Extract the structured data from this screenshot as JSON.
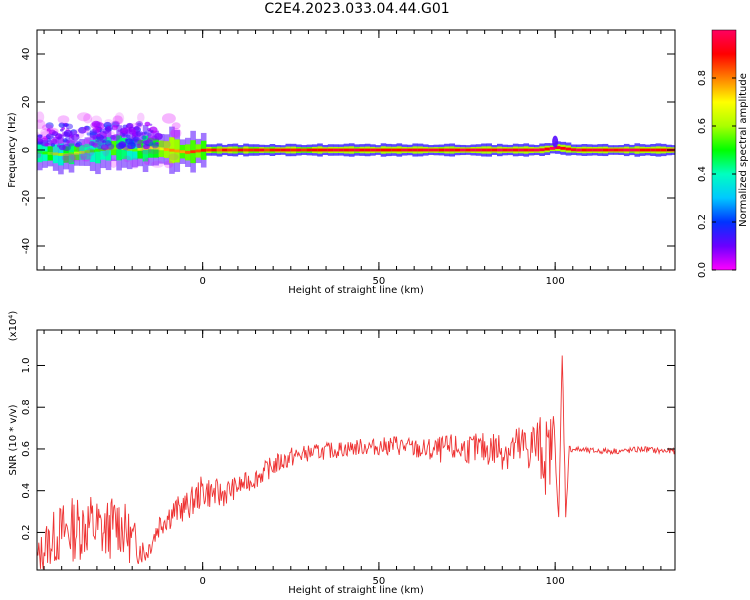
{
  "figure": {
    "title": "C2E4.2023.033.04.44.G01"
  },
  "colorbar": {
    "label": "Normalized spectral amplitude",
    "ticks": [
      "0.0",
      "0.2",
      "0.4",
      "0.6",
      "0.8"
    ],
    "tick_values": [
      0.0,
      0.2,
      0.4,
      0.6,
      0.8
    ],
    "range": [
      0,
      1
    ],
    "colors": [
      "#ff00ff",
      "#6a00ff",
      "#0033ff",
      "#00c8ff",
      "#00ffc0",
      "#00ff00",
      "#aaff00",
      "#ffff00",
      "#ff8000",
      "#ff0000",
      "#ff0060"
    ]
  },
  "chart_data": [
    {
      "type": "heatmap",
      "title": "",
      "xlabel": "Height of straight line (km)",
      "ylabel": "Frequency (Hz)",
      "xlim": [
        -47,
        134
      ],
      "ylim": [
        -50,
        50
      ],
      "xticks": [
        "0",
        "50",
        "100"
      ],
      "xtick_values": [
        0,
        50,
        100
      ],
      "yticks": [
        "-40",
        "-20",
        "0",
        "20",
        "40"
      ],
      "ytick_values": [
        -40,
        -20,
        0,
        20,
        40
      ],
      "grid": false,
      "ridge": {
        "x": [
          -47,
          -40,
          -35,
          -30,
          -25,
          -20,
          -15,
          -10,
          -5,
          0,
          10,
          30,
          60,
          95,
          100,
          105,
          134
        ],
        "frequency": [
          -1,
          -2,
          -1,
          0,
          1,
          0,
          1,
          0,
          -1,
          0,
          0,
          0,
          0,
          0,
          1,
          0,
          0
        ],
        "amplitude": [
          0.5,
          0.6,
          0.55,
          0.55,
          0.6,
          0.6,
          0.65,
          0.75,
          0.8,
          0.85,
          0.9,
          0.9,
          0.95,
          0.95,
          0.95,
          0.95,
          0.95
        ]
      }
    },
    {
      "type": "line",
      "title": "",
      "xlabel": "Height of straight line (km)",
      "ylabel": "SNR (10 * v/v)",
      "y_multiplier": "(x10⁴)",
      "xlim": [
        -47,
        134
      ],
      "ylim": [
        0.02,
        1.17
      ],
      "xticks": [
        "0",
        "50",
        "100"
      ],
      "xtick_values": [
        0,
        50,
        100
      ],
      "yticks": [
        "0.2",
        "0.4",
        "0.6",
        "0.8",
        "1.0"
      ],
      "ytick_values": [
        0.2,
        0.4,
        0.6,
        0.8,
        1.0
      ],
      "grid": false,
      "series": [
        {
          "color": "#ee3333",
          "x": [
            -47,
            -44,
            -40,
            -36,
            -32,
            -28,
            -24,
            -20,
            -16,
            -12,
            -8,
            -4,
            0,
            5,
            10,
            15,
            20,
            25,
            30,
            35,
            40,
            45,
            50,
            55,
            60,
            65,
            70,
            75,
            80,
            85,
            90,
            95,
            98,
            100,
            101,
            102,
            103,
            104,
            105,
            110,
            115,
            120,
            125,
            130,
            134
          ],
          "values": [
            0.07,
            0.15,
            0.2,
            0.22,
            0.24,
            0.2,
            0.25,
            0.16,
            0.1,
            0.25,
            0.3,
            0.33,
            0.4,
            0.38,
            0.42,
            0.46,
            0.52,
            0.56,
            0.58,
            0.59,
            0.6,
            0.61,
            0.61,
            0.62,
            0.6,
            0.59,
            0.6,
            0.6,
            0.6,
            0.6,
            0.6,
            0.62,
            0.55,
            0.7,
            0.2,
            1.05,
            0.3,
            0.6,
            0.6,
            0.59,
            0.59,
            0.59,
            0.6,
            0.59,
            0.59
          ],
          "noise": [
            0.08,
            0.12,
            0.15,
            0.16,
            0.16,
            0.15,
            0.15,
            0.12,
            0.05,
            0.07,
            0.07,
            0.07,
            0.08,
            0.07,
            0.05,
            0.05,
            0.05,
            0.05,
            0.04,
            0.04,
            0.04,
            0.04,
            0.04,
            0.05,
            0.05,
            0.06,
            0.07,
            0.07,
            0.08,
            0.1,
            0.12,
            0.15,
            0.2,
            0.1,
            0.1,
            0.05,
            0.05,
            0.02,
            0.015,
            0.015,
            0.015,
            0.015,
            0.015,
            0.015,
            0.015
          ]
        }
      ]
    }
  ]
}
